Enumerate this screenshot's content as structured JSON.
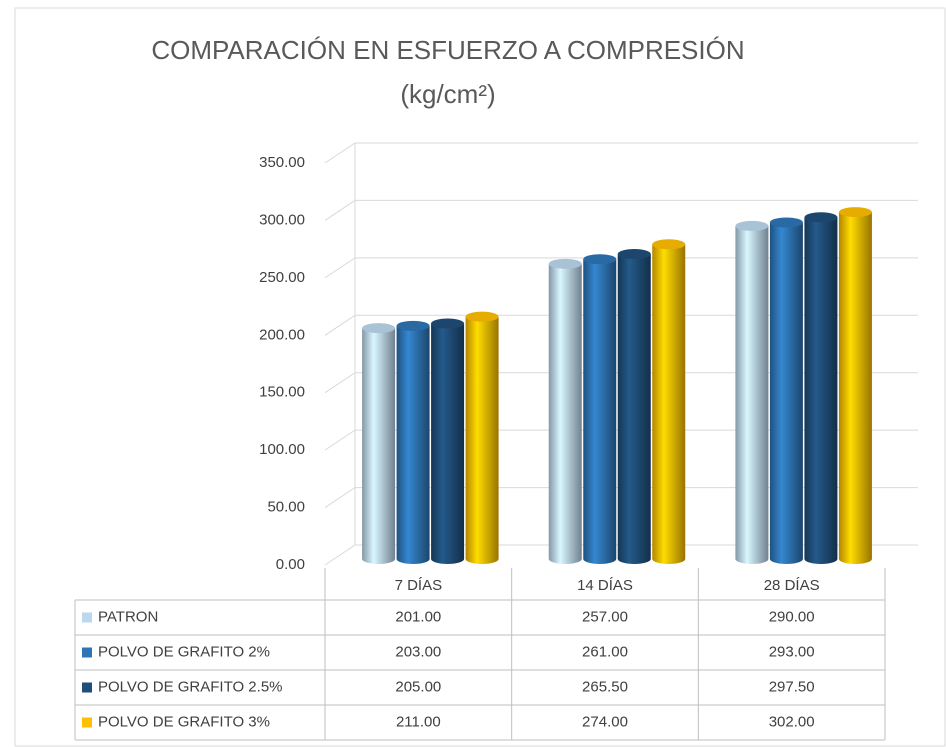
{
  "chart_data": {
    "type": "bar3d",
    "title": "COMPARACIÓN EN ESFUERZO A COMPRESIÓN",
    "subtitle": "(kg/cm²)",
    "categories": [
      "7 DÍAS",
      "14 DÍAS",
      "28 DÍAS"
    ],
    "series": [
      {
        "name": "PATRON",
        "color": "#bdd7ee",
        "values": [
          201,
          257,
          290
        ],
        "value_labels": [
          "201.00",
          "257.00",
          "290.00"
        ]
      },
      {
        "name": "POLVO DE GRAFITO 2%",
        "color": "#2e75b6",
        "values": [
          203,
          261,
          293
        ],
        "value_labels": [
          "203.00",
          "261.00",
          "293.00"
        ]
      },
      {
        "name": "POLVO DE GRAFITO 2.5%",
        "color": "#1f4e79",
        "values": [
          205,
          265.5,
          297.5
        ],
        "value_labels": [
          "205.00",
          "265.50",
          "297.50"
        ]
      },
      {
        "name": "POLVO DE GRAFITO 3%",
        "color": "#ffc000",
        "values": [
          211,
          274,
          302
        ],
        "value_labels": [
          "211.00",
          "274.00",
          "302.00"
        ]
      }
    ],
    "ylim": [
      0,
      350
    ],
    "yticks": [
      {
        "value": 0,
        "label": "0.00"
      },
      {
        "value": 50,
        "label": "50.00"
      },
      {
        "value": 100,
        "label": "100.00"
      },
      {
        "value": 150,
        "label": "150.00"
      },
      {
        "value": 200,
        "label": "200.00"
      },
      {
        "value": 250,
        "label": "250.00"
      },
      {
        "value": 300,
        "label": "300.00"
      },
      {
        "value": 350,
        "label": "350.00"
      }
    ],
    "grid": true
  }
}
